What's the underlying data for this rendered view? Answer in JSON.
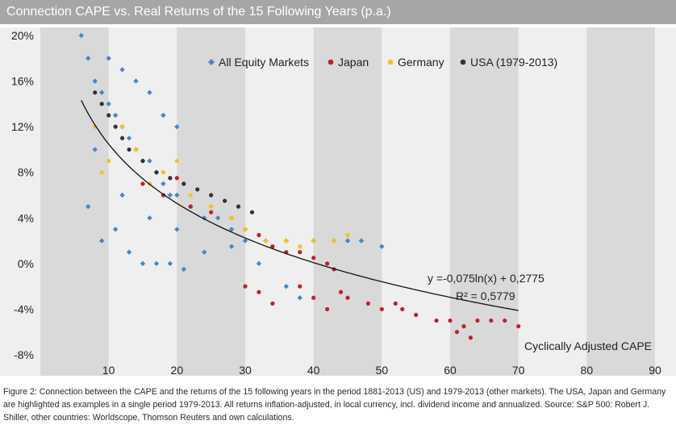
{
  "title": "Connection CAPE vs. Real Returns of the 15 Following Years (p.a.)",
  "caption": "Figure 2: Connection between the CAPE and the returns of the 15 following years in the period 1881-2013 (US) and 1979-2013 (other markets). The USA, Japan and Germany are highlighted as examples in a single period 1979-2013. All returns inflation-adjusted, in local currency, incl. dividend income and annualized. Source: S&P 500: Robert J. Shiller, other countries: Worldscope, Thomson Reuters and own calculations.",
  "colors": {
    "all_equity": "#4a86c5",
    "japan": "#c0202a",
    "germany": "#f2c41c",
    "usa": "#333333",
    "band_dark": "#d9d9d9",
    "band_light": "#efefef",
    "title_bg": "#a6a6a6"
  },
  "chart_data": {
    "type": "scatter",
    "title": "Connection CAPE vs. Real Returns of the 15 Following Years (p.a.)",
    "xlabel": "Cyclically Adjusted CAPE",
    "ylabel": "",
    "xlim": [
      0,
      90
    ],
    "ylim": [
      -0.08,
      0.2
    ],
    "x_ticks": [
      "10",
      "20",
      "30",
      "40",
      "50",
      "60",
      "70",
      "80",
      "90"
    ],
    "y_ticks": [
      "20%",
      "16%",
      "12%",
      "8%",
      "4%",
      "0%",
      "-4%",
      "-8%"
    ],
    "legend_position": "top",
    "grid": "alternating vertical bands",
    "series": [
      {
        "name": "All Equity Markets",
        "marker": "diamond",
        "points": [
          [
            6,
            0.2
          ],
          [
            7,
            0.18
          ],
          [
            8,
            0.16
          ],
          [
            9,
            0.15
          ],
          [
            10,
            0.14
          ],
          [
            11,
            0.13
          ],
          [
            12,
            0.12
          ],
          [
            13,
            0.11
          ],
          [
            14,
            0.1
          ],
          [
            15,
            0.09
          ],
          [
            16,
            0.09
          ],
          [
            17,
            0.08
          ],
          [
            18,
            0.07
          ],
          [
            19,
            0.06
          ],
          [
            20,
            0.06
          ],
          [
            22,
            0.05
          ],
          [
            24,
            0.04
          ],
          [
            26,
            0.04
          ],
          [
            28,
            0.03
          ],
          [
            30,
            0.02
          ],
          [
            33,
            0.02
          ],
          [
            36,
            0.02
          ],
          [
            40,
            0.02
          ],
          [
            43,
            0.02
          ],
          [
            45,
            0.02
          ],
          [
            47,
            0.02
          ],
          [
            50,
            0.015
          ],
          [
            7,
            0.05
          ],
          [
            9,
            0.02
          ],
          [
            11,
            0.03
          ],
          [
            13,
            0.01
          ],
          [
            15,
            0.0
          ],
          [
            17,
            0.0
          ],
          [
            19,
            0.0
          ],
          [
            21,
            -0.005
          ],
          [
            10,
            0.18
          ],
          [
            12,
            0.17
          ],
          [
            14,
            0.16
          ],
          [
            16,
            0.15
          ],
          [
            18,
            0.13
          ],
          [
            20,
            0.12
          ],
          [
            8,
            0.1
          ],
          [
            12,
            0.06
          ],
          [
            16,
            0.04
          ],
          [
            20,
            0.03
          ],
          [
            24,
            0.01
          ],
          [
            28,
            0.015
          ],
          [
            32,
            0.0
          ],
          [
            36,
            -0.02
          ],
          [
            38,
            -0.03
          ]
        ]
      },
      {
        "name": "Japan",
        "marker": "circle",
        "points": [
          [
            15,
            0.07
          ],
          [
            18,
            0.06
          ],
          [
            20,
            0.075
          ],
          [
            22,
            0.05
          ],
          [
            25,
            0.045
          ],
          [
            28,
            0.04
          ],
          [
            30,
            0.03
          ],
          [
            32,
            0.025
          ],
          [
            34,
            0.015
          ],
          [
            36,
            0.01
          ],
          [
            38,
            0.01
          ],
          [
            40,
            0.005
          ],
          [
            42,
            0.0
          ],
          [
            43,
            -0.005
          ],
          [
            30,
            -0.02
          ],
          [
            32,
            -0.025
          ],
          [
            34,
            -0.035
          ],
          [
            38,
            -0.02
          ],
          [
            40,
            -0.03
          ],
          [
            42,
            -0.04
          ],
          [
            45,
            -0.03
          ],
          [
            48,
            -0.035
          ],
          [
            50,
            -0.04
          ],
          [
            52,
            -0.035
          ],
          [
            55,
            -0.045
          ],
          [
            58,
            -0.05
          ],
          [
            60,
            -0.05
          ],
          [
            62,
            -0.055
          ],
          [
            64,
            -0.05
          ],
          [
            66,
            -0.05
          ],
          [
            68,
            -0.05
          ],
          [
            70,
            -0.055
          ],
          [
            61,
            -0.06
          ],
          [
            63,
            -0.065
          ],
          [
            53,
            -0.04
          ],
          [
            44,
            -0.025
          ]
        ]
      },
      {
        "name": "Germany",
        "marker": "circle",
        "points": [
          [
            9,
            0.08
          ],
          [
            10,
            0.09
          ],
          [
            12,
            0.12
          ],
          [
            14,
            0.1
          ],
          [
            16,
            0.07
          ],
          [
            18,
            0.08
          ],
          [
            20,
            0.09
          ],
          [
            22,
            0.06
          ],
          [
            25,
            0.05
          ],
          [
            28,
            0.04
          ],
          [
            30,
            0.03
          ],
          [
            33,
            0.02
          ],
          [
            36,
            0.02
          ],
          [
            38,
            0.015
          ],
          [
            40,
            0.02
          ],
          [
            43,
            0.02
          ],
          [
            45,
            0.025
          ],
          [
            8,
            0.12
          ]
        ]
      },
      {
        "name": "USA (1979-2013)",
        "marker": "circle",
        "points": [
          [
            8,
            0.15
          ],
          [
            9,
            0.14
          ],
          [
            10,
            0.13
          ],
          [
            11,
            0.12
          ],
          [
            12,
            0.11
          ],
          [
            13,
            0.1
          ],
          [
            15,
            0.09
          ],
          [
            17,
            0.08
          ],
          [
            19,
            0.075
          ],
          [
            21,
            0.07
          ],
          [
            23,
            0.065
          ],
          [
            25,
            0.06
          ],
          [
            27,
            0.055
          ],
          [
            29,
            0.05
          ],
          [
            31,
            0.045
          ]
        ]
      }
    ],
    "trendline": {
      "equation": "y =-0,075ln(x) + 0,2775",
      "r_squared": "R² = 0,5779",
      "a": -0.075,
      "b": 0.2775,
      "x_range": [
        6,
        70
      ]
    }
  }
}
